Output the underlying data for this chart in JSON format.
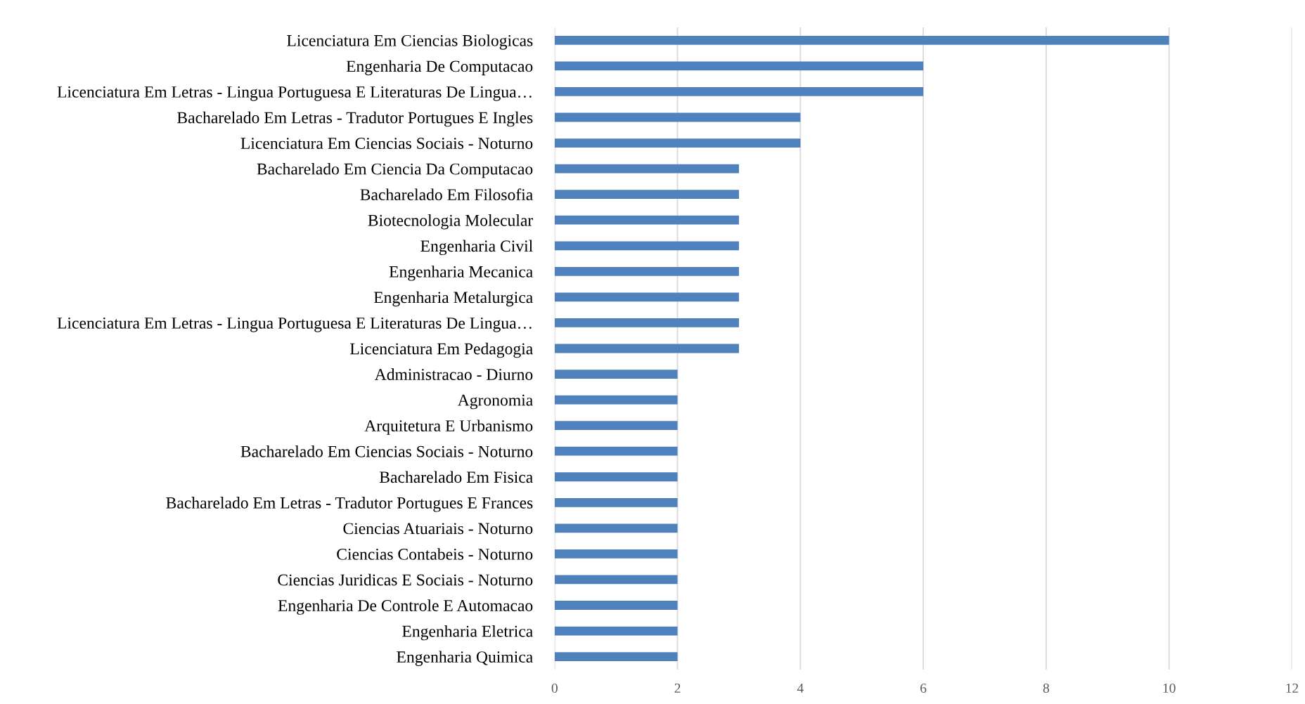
{
  "chart_data": {
    "type": "bar",
    "orientation": "horizontal",
    "categories": [
      "Licenciatura Em Ciencias Biologicas",
      "Engenharia De Computacao",
      "Licenciatura Em Letras - Lingua Portuguesa E Literaturas De Lingua…",
      "Bacharelado Em Letras - Tradutor Portugues E Ingles",
      "Licenciatura Em Ciencias Sociais - Noturno",
      "Bacharelado Em Ciencia Da Computacao",
      "Bacharelado Em Filosofia",
      "Biotecnologia Molecular",
      "Engenharia Civil",
      "Engenharia Mecanica",
      "Engenharia Metalurgica",
      "Licenciatura Em Letras - Lingua Portuguesa E Literaturas De Lingua…",
      "Licenciatura Em Pedagogia",
      "Administracao - Diurno",
      "Agronomia",
      "Arquitetura E Urbanismo",
      "Bacharelado Em Ciencias Sociais - Noturno",
      "Bacharelado Em Fisica",
      "Bacharelado Em Letras - Tradutor Portugues E Frances",
      "Ciencias Atuariais - Noturno",
      "Ciencias Contabeis - Noturno",
      "Ciencias Juridicas E Sociais - Noturno",
      "Engenharia De Controle E Automacao",
      "Engenharia Eletrica",
      "Engenharia Quimica"
    ],
    "values": [
      10,
      6,
      6,
      4,
      4,
      3,
      3,
      3,
      3,
      3,
      3,
      3,
      3,
      2,
      2,
      2,
      2,
      2,
      2,
      2,
      2,
      2,
      2,
      2,
      2
    ],
    "color": "#4f81bd",
    "xlim": [
      0,
      12
    ],
    "xticks": [
      0,
      2,
      4,
      6,
      8,
      10,
      12
    ],
    "grid": "x",
    "legend": false
  }
}
